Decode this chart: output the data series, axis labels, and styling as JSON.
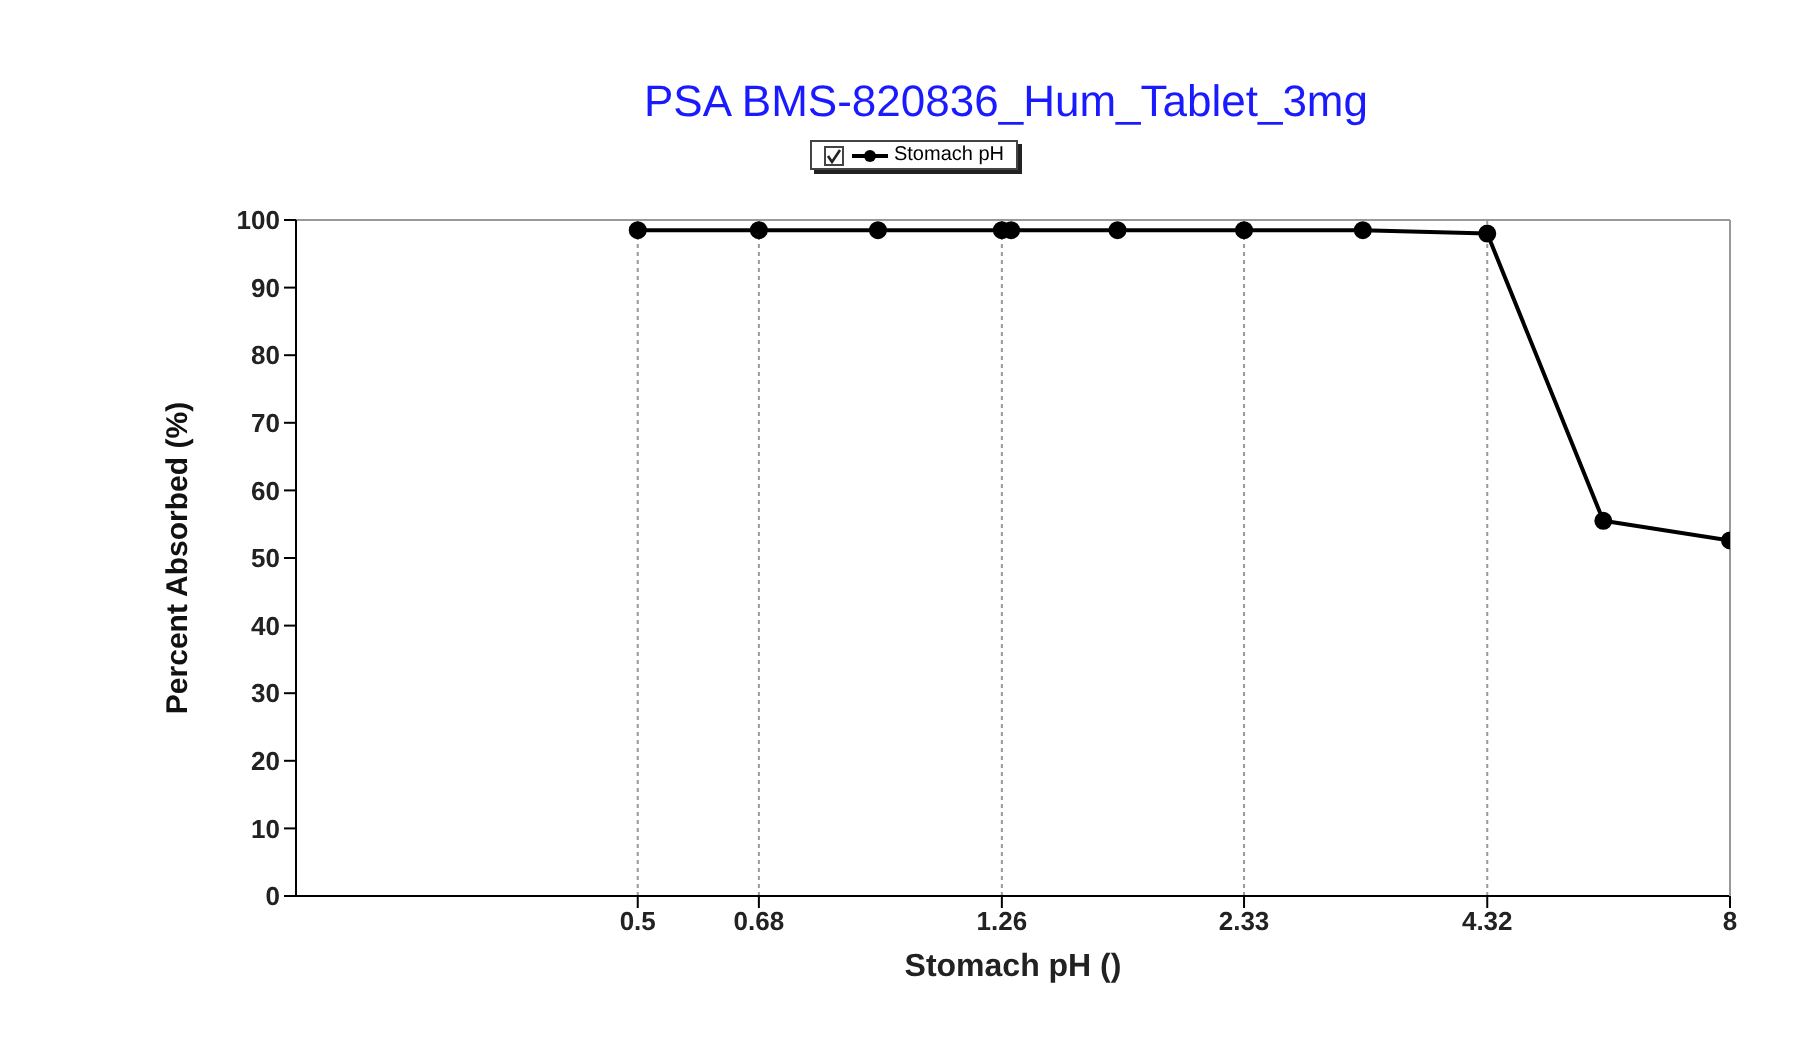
{
  "chart_data": {
    "type": "line",
    "title": "PSA BMS-820836_Hum_Tablet_3mg",
    "xlabel": "Stomach pH ()",
    "ylabel": "Percent Absorbed (%)",
    "x": [
      0.5,
      0.68,
      0.92,
      1.26,
      1.29,
      1.69,
      2.33,
      3.15,
      4.32,
      5.8,
      8
    ],
    "series": [
      {
        "name": "Stomach pH",
        "color": "#000000",
        "values": [
          98.5,
          98.5,
          98.5,
          98.5,
          98.5,
          98.5,
          98.5,
          98.5,
          98,
          55.5,
          52.6
        ]
      }
    ],
    "xlim": [
      0.21,
      8
    ],
    "xticks": [
      0.5,
      0.68,
      1.26,
      2.33,
      4.32,
      8
    ],
    "log": "x",
    "ylim": [
      0,
      100
    ],
    "yticks": [
      0,
      10,
      20,
      30,
      40,
      50,
      60,
      70,
      80,
      90,
      100
    ],
    "grid": "x",
    "legend": "top",
    "marker": "circle",
    "line_style": "solid"
  }
}
